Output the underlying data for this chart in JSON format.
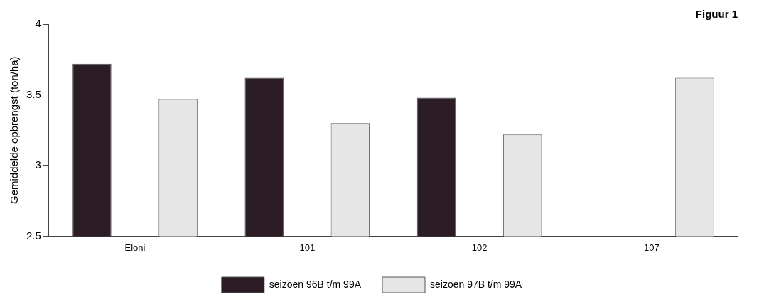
{
  "chart_data": {
    "type": "bar",
    "title": "Figuur 1",
    "ylabel": "Gemiddelde opbrengst (ton/ha)",
    "categories": [
      "Eloni",
      "101",
      "102",
      "107"
    ],
    "series": [
      {
        "name": "seizoen 96B t/m 99A",
        "color": "#2b1c25",
        "values": [
          3.72,
          3.62,
          3.48,
          null
        ]
      },
      {
        "name": "seizoen 97B t/m 99A",
        "color": "#e6e6e6",
        "values": [
          3.47,
          3.3,
          3.22,
          3.62
        ]
      }
    ],
    "ylim": [
      2.5,
      4
    ],
    "yticks": [
      2.5,
      3,
      3.5,
      4
    ],
    "grid": false,
    "legend": "bottom"
  }
}
